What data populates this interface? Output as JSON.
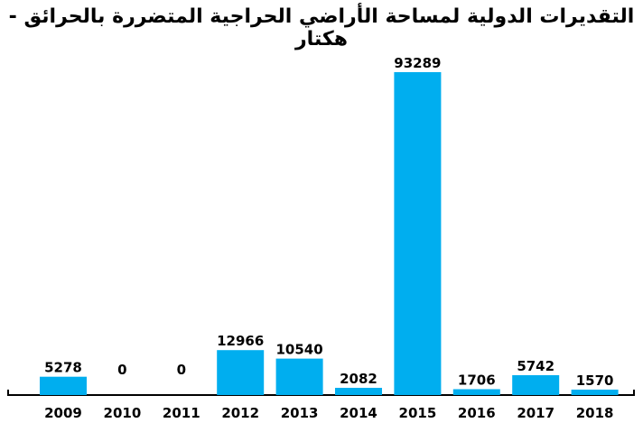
{
  "chart_data": {
    "type": "bar",
    "title": "التقديرات الدولية لمساحة الأراضي الحراجية المتضررة بالحرائق - هكتار",
    "categories": [
      "2009",
      "2010",
      "2011",
      "2012",
      "2013",
      "2014",
      "2015",
      "2016",
      "2017",
      "2018"
    ],
    "values": [
      5278,
      0,
      0,
      12966,
      10540,
      2082,
      93289,
      1706,
      5742,
      1570
    ],
    "value_labels": [
      "5278",
      "0",
      "0",
      "12966",
      "10540",
      "2082",
      "93289",
      "1706",
      "5742",
      "1570"
    ],
    "xlabel": "",
    "ylabel": "",
    "ylim": [
      0,
      93289
    ],
    "grid": false,
    "bar_color": "#00AEEF"
  }
}
